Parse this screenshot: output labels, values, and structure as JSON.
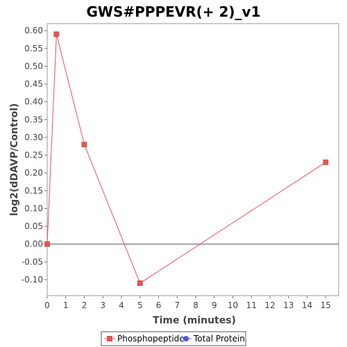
{
  "chart_data": {
    "type": "line",
    "title": "GWS#PPPEVR(+ 2)_v1",
    "xlabel": "Time (minutes)",
    "ylabel": "log2(dDAVP/Control)",
    "x_ticks": [
      "0",
      "1",
      "2",
      "3",
      "4",
      "5",
      "6",
      "7",
      "8",
      "9",
      "10",
      "11",
      "12",
      "13",
      "14",
      "15"
    ],
    "y_ticks": [
      "0.60",
      "0.55",
      "0.50",
      "0.45",
      "0.40",
      "0.35",
      "0.30",
      "0.25",
      "0.20",
      "0.15",
      "0.10",
      "0.05",
      "0.00",
      "-0.05",
      "-0.10"
    ],
    "xlim": [
      0,
      15.7
    ],
    "ylim": [
      -0.145,
      0.62
    ],
    "grid": false,
    "legend_position": "bottom-center",
    "series": [
      {
        "name": "Phosphopeptide",
        "color": "#e05555",
        "marker": "square",
        "points": [
          {
            "x": 0,
            "y": 0.0
          },
          {
            "x": 0.5,
            "y": 0.59
          },
          {
            "x": 2,
            "y": 0.28
          },
          {
            "x": 5,
            "y": -0.11
          },
          {
            "x": 15,
            "y": 0.23
          }
        ]
      },
      {
        "name": "Total Protein",
        "color": "#5555ee",
        "marker": "circle",
        "points": []
      }
    ]
  }
}
